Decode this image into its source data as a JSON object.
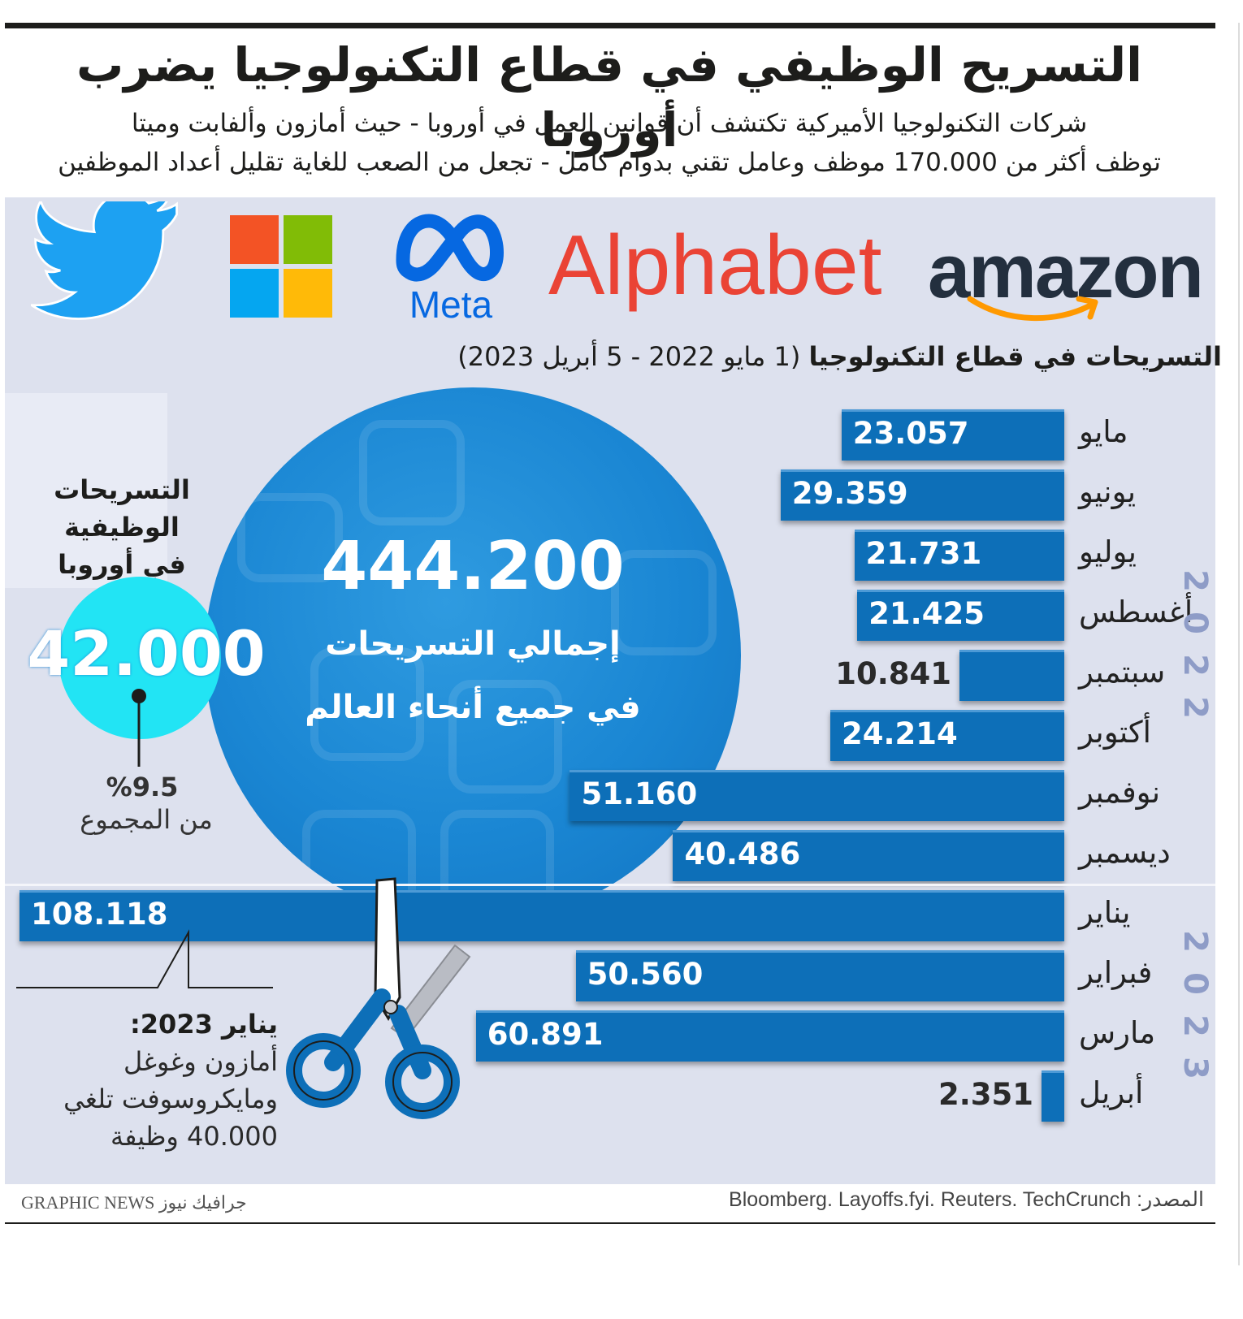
{
  "title": "التسريح الوظيفي في قطاع التكنولوجيا يضرب أوروبا",
  "subtitle_lines": [
    "شركات التكنولوجيا الأميركية تكتشف أن قوانين العمل في أوروبا - حيث أمازون وألفابت وميتا",
    "توظف أكثر من 170.000 موظف وعامل تقني بدوام كامل - تجعل من الصعب للغاية تقليل أعداد الموظفين"
  ],
  "logos": {
    "meta_text": "Meta",
    "alphabet_text": "Alphabet",
    "amazon_text": "amazon",
    "twitter_icon": "twitter-bird-icon",
    "microsoft_icon": "microsoft-squares-icon",
    "colors": {
      "twitter": "#1da1f2",
      "ms_red": "#f35325",
      "ms_green": "#81bc06",
      "ms_blue": "#05a6f0",
      "ms_yellow": "#ffba08",
      "meta": "#0668e1",
      "alphabet": "#ea4335",
      "amazon": "#232f3e",
      "amazon_smile": "#ff9900"
    }
  },
  "section": {
    "title_bold": "التسريحات في قطاع التكنولوجيا",
    "title_rest": "(1 مايو 2022 - 5 أبريل 2023)"
  },
  "total": {
    "value": "444.200",
    "line1": "إجمالي التسريحات",
    "line2": "في جميع أنحاء العالم"
  },
  "europe": {
    "title_line1": "التسريحات الوظيفية",
    "title_line2": "في أوروبا",
    "value": "42.000",
    "percent": "%9.5",
    "percent_label": "من المجموع"
  },
  "note": {
    "heading": "يناير 2023:",
    "lines": [
      "أمازون وغوغل",
      "ومايكروسوفت تلغي",
      "40.000 وظيفة"
    ]
  },
  "chart_data": {
    "type": "bar",
    "orientation": "horizontal",
    "title": "التسريحات في قطاع التكنولوجيا (1 مايو 2022 - 5 أبريل 2023)",
    "year_groups": [
      {
        "year": "2022",
        "months": [
          "مايو",
          "يونيو",
          "يوليو",
          "أغسطس",
          "سبتمبر",
          "أكتوبر",
          "نوفمبر",
          "ديسمبر"
        ]
      },
      {
        "year": "2023",
        "months": [
          "يناير",
          "فبراير",
          "مارس",
          "أبريل"
        ]
      }
    ],
    "categories": [
      "مايو",
      "يونيو",
      "يوليو",
      "أغسطس",
      "سبتمبر",
      "أكتوبر",
      "نوفمبر",
      "ديسمبر",
      "يناير",
      "فبراير",
      "مارس",
      "أبريل"
    ],
    "values": [
      23057,
      29359,
      21731,
      21425,
      10841,
      24214,
      51160,
      40486,
      108118,
      50560,
      60891,
      2351
    ],
    "labels": [
      "23.057",
      "29.359",
      "21.731",
      "21.425",
      "10.841",
      "24.214",
      "51.160",
      "40.486",
      "108.118",
      "50.560",
      "60.891",
      "2.351"
    ],
    "xlim": [
      0,
      108118
    ],
    "bar_color": "#0d6fb8"
  },
  "footer": {
    "source": "المصدر: Bloomberg. Layoffs.fyi. Reuters. TechCrunch",
    "credit": "GRAPHIC NEWS جرافيك نيوز"
  }
}
